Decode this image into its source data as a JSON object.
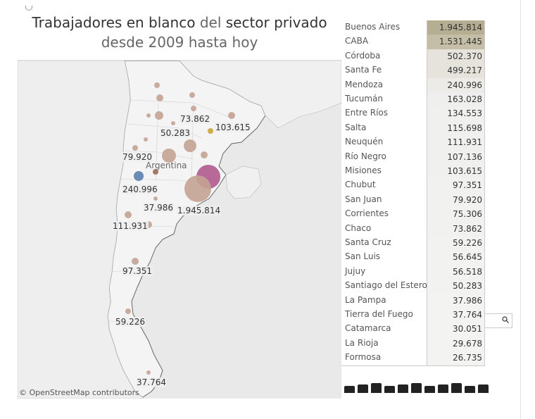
{
  "title": {
    "line1_part1": "Trabajadores en blanco",
    "line1_part2": "del",
    "line1_part3": "sector privado",
    "line2": "desde 2009 hasta hoy"
  },
  "map": {
    "country_label": "Argentina",
    "credit": "© OpenStreetMap contributors",
    "labels": [
      "73.862",
      "50.283",
      "103.615",
      "79.920",
      "240.996",
      "37.986",
      "1.945.814",
      "111.931",
      "97.351",
      "59.226",
      "37.764"
    ],
    "colors": {
      "land": "#f4f4f4",
      "water": "#e9e9e9",
      "bubble": "#c4a394",
      "buenos_aires": "#b05a8e",
      "mendoza": "#5b7fb1",
      "misiones": "#c9a63a"
    }
  },
  "table": {
    "rows": [
      {
        "province": "Buenos Aires",
        "value": "1.945.814",
        "color": "#b5ae92"
      },
      {
        "province": "CABA",
        "value": "1.531.445",
        "color": "#c4bea7"
      },
      {
        "province": "Córdoba",
        "value": "502.370",
        "color": "#e6e3dd"
      },
      {
        "province": "Santa Fe",
        "value": "499.217",
        "color": "#e6e3dd"
      },
      {
        "province": "Mendoza",
        "value": "240.996",
        "color": "#ecebe8"
      },
      {
        "province": "Tucumán",
        "value": "163.028",
        "color": "#efefed"
      },
      {
        "province": "Entre Ríos",
        "value": "134.553",
        "color": "#f0f0ee"
      },
      {
        "province": "Salta",
        "value": "115.698",
        "color": "#f0f0ee"
      },
      {
        "province": "Neuquén",
        "value": "111.931",
        "color": "#f0f0ee"
      },
      {
        "province": "Río Negro",
        "value": "107.136",
        "color": "#f0f0ee"
      },
      {
        "province": "Misiones",
        "value": "103.615",
        "color": "#f0f0ee"
      },
      {
        "province": "Chubut",
        "value": "97.351",
        "color": "#f1f1f0"
      },
      {
        "province": "San Juan",
        "value": "79.920",
        "color": "#f1f1f0"
      },
      {
        "province": "Corrientes",
        "value": "75.306",
        "color": "#f1f1f0"
      },
      {
        "province": "Chaco",
        "value": "73.862",
        "color": "#f1f1f0"
      },
      {
        "province": "Santa Cruz",
        "value": "59.226",
        "color": "#f2f2f1"
      },
      {
        "province": "San Luis",
        "value": "56.645",
        "color": "#f2f2f1"
      },
      {
        "province": "Jujuy",
        "value": "56.518",
        "color": "#f2f2f1"
      },
      {
        "province": "Santiago del Estero",
        "value": "50.283",
        "color": "#f2f2f1"
      },
      {
        "province": "La Pampa",
        "value": "37.986",
        "color": "#f3f3f2"
      },
      {
        "province": "Tierra del Fuego",
        "value": "37.764",
        "color": "#f3f3f2"
      },
      {
        "province": "Catamarca",
        "value": "30.051",
        "color": "#f3f3f2"
      },
      {
        "province": "La Rioja",
        "value": "29.678",
        "color": "#f3f3f2"
      },
      {
        "province": "Formosa",
        "value": "26.735",
        "color": "#f3f3f2"
      }
    ]
  },
  "icons": [
    "worker-icon",
    "office-icon",
    "construction-icon",
    "farmer-icon",
    "factory-icon",
    "shop-icon",
    "delivery-icon",
    "teacher-icon",
    "waiter-icon",
    "chef-icon",
    "retail-icon"
  ]
}
